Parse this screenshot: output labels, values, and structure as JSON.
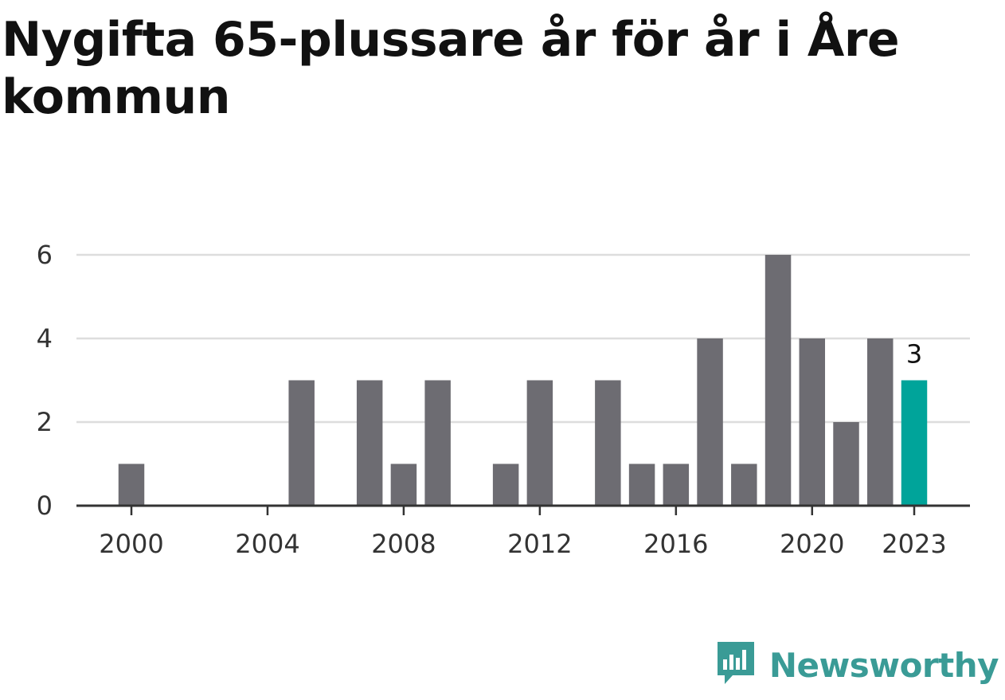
{
  "title": "Nygifta 65-plussare år för år i Åre kommun",
  "brand": {
    "name": "Newsworthy",
    "icon": "newsworthy-logo-icon",
    "color": "#3a9b96"
  },
  "colors": {
    "bar": "#6d6c72",
    "highlight": "#00a49a",
    "grid": "#dddddd",
    "axis": "#333333"
  },
  "chart_data": {
    "type": "bar",
    "title": "Nygifta 65-plussare år för år i Åre kommun",
    "xlabel": "",
    "ylabel": "",
    "x": [
      2000,
      2001,
      2002,
      2003,
      2004,
      2005,
      2006,
      2007,
      2008,
      2009,
      2010,
      2011,
      2012,
      2013,
      2014,
      2015,
      2016,
      2017,
      2018,
      2019,
      2020,
      2021,
      2022,
      2023
    ],
    "values": [
      1,
      0,
      0,
      0,
      0,
      3,
      0,
      3,
      1,
      3,
      0,
      1,
      3,
      0,
      3,
      1,
      1,
      4,
      1,
      6,
      4,
      2,
      4,
      3
    ],
    "x_ticks": [
      2000,
      2004,
      2008,
      2012,
      2016,
      2020,
      2023
    ],
    "y_ticks": [
      0,
      2,
      4,
      6
    ],
    "ylim": [
      0,
      6
    ],
    "grid": true,
    "highlight": {
      "x": 2023,
      "label": "3"
    }
  }
}
